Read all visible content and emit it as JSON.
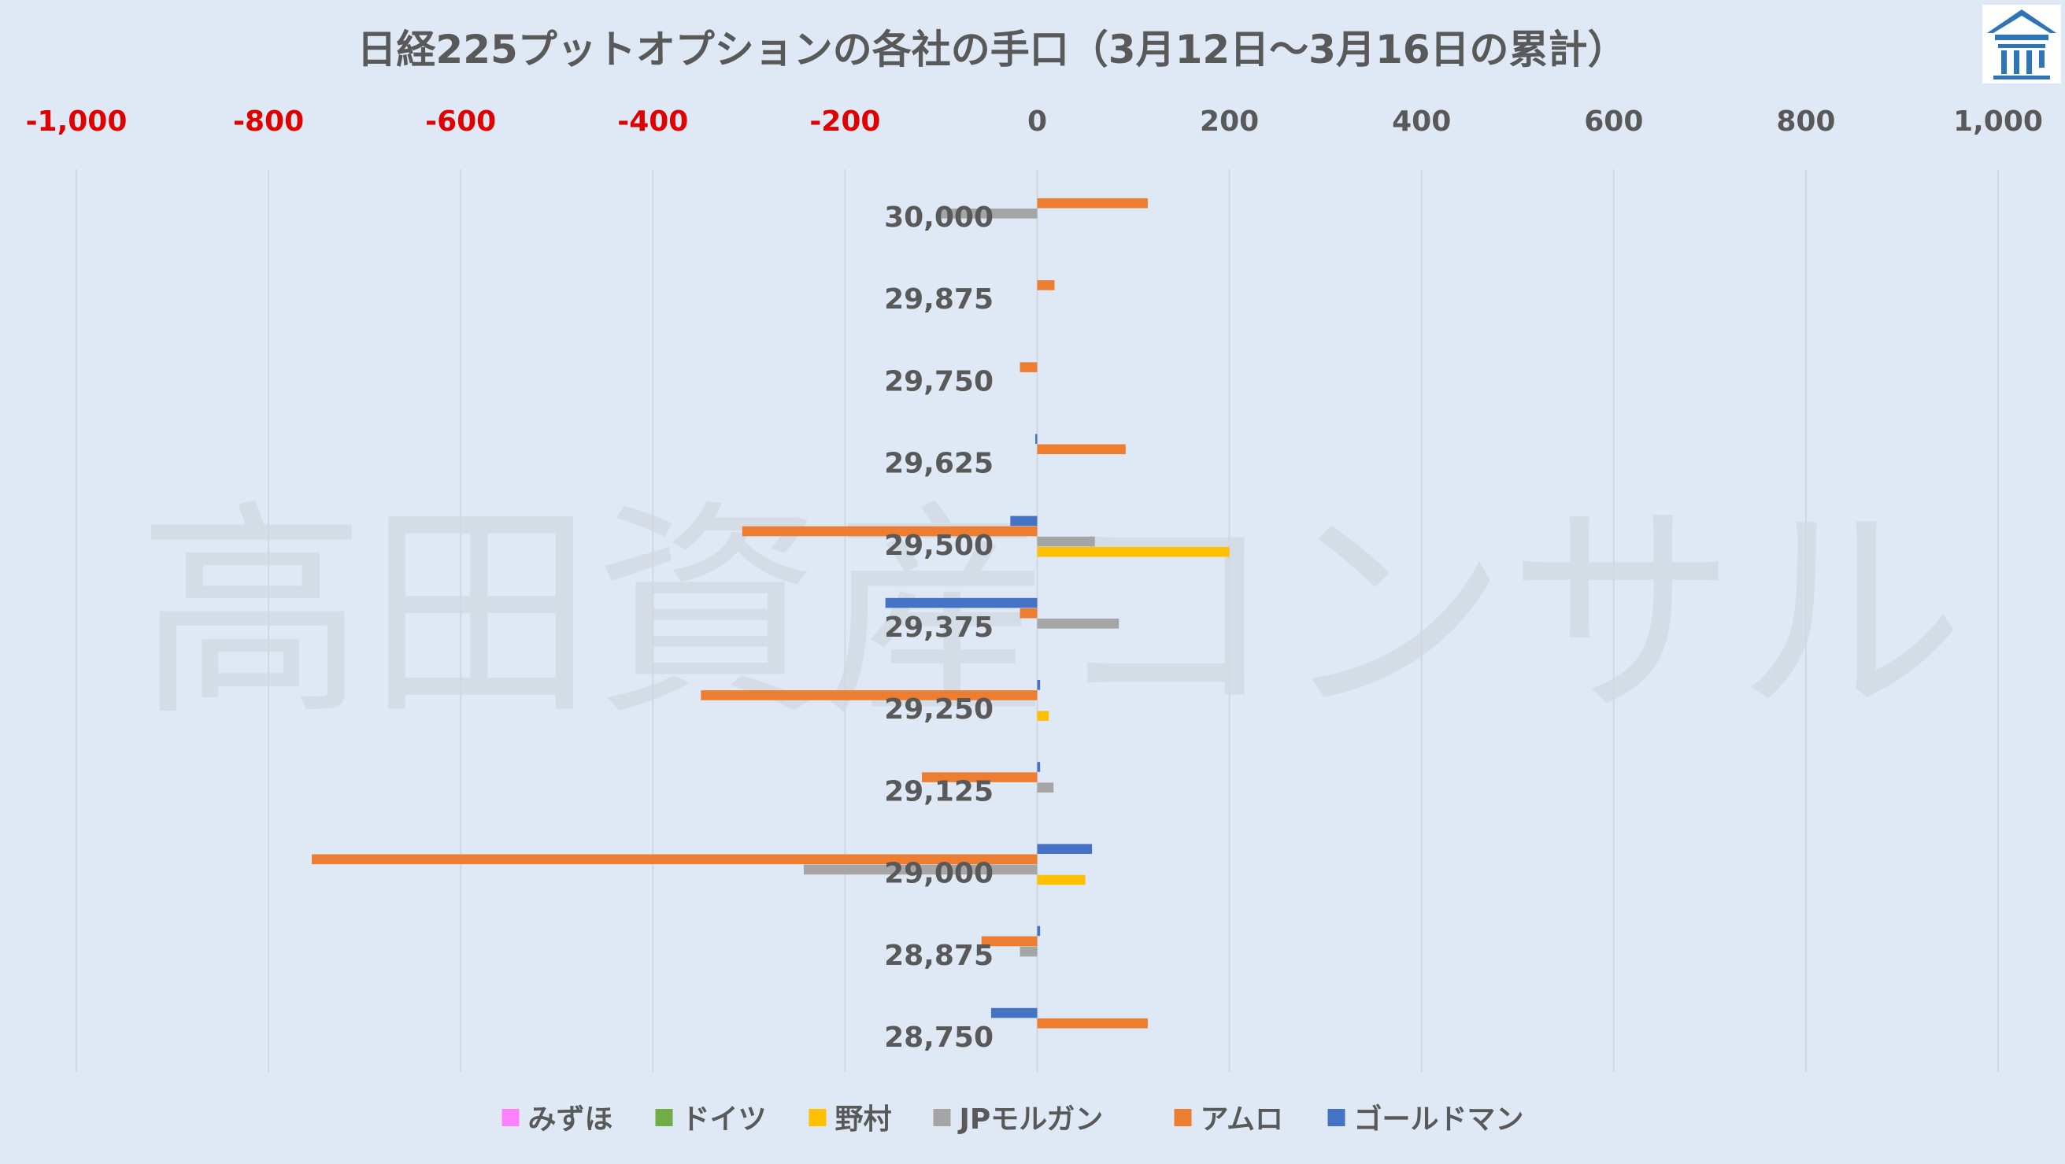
{
  "watermark": "高田資産コンサル",
  "logo": {
    "icon": "building-roof-icon",
    "color": "#2e75b6"
  },
  "colors": {
    "negative_tick": "#e00000",
    "positive_tick": "#595959",
    "grid": "#d0d7e0",
    "background": "#dfe9f5"
  },
  "chart_data": {
    "type": "bar",
    "orientation": "horizontal",
    "title": "日経225プットオプションの各社の手口（3月12日～3月16日の累計）",
    "x_axis": {
      "position": "top",
      "range": [
        -1000,
        1000
      ],
      "tick_labels": [
        "-1,000",
        "-800",
        "-600",
        "-400",
        "-200",
        "0",
        "200",
        "400",
        "600",
        "800",
        "1,000"
      ],
      "tick_values": [
        -1000,
        -800,
        -600,
        -400,
        -200,
        0,
        200,
        400,
        600,
        800,
        1000
      ],
      "grid": "vertical"
    },
    "categories": [
      "30,000",
      "29,875",
      "29,750",
      "29,625",
      "29,500",
      "29,375",
      "29,250",
      "29,125",
      "29,000",
      "28,875",
      "28,750"
    ],
    "legend_position": "bottom",
    "series": [
      {
        "name": "みずほ",
        "color": "#ff80ff",
        "values": [
          0,
          0,
          0,
          0,
          0,
          0,
          0,
          0,
          0,
          0,
          0
        ]
      },
      {
        "name": "ドイツ",
        "color": "#70ad47",
        "values": [
          0,
          0,
          0,
          0,
          0,
          0,
          0,
          0,
          0,
          0,
          0
        ]
      },
      {
        "name": "野村",
        "color": "#ffc000",
        "values": [
          0,
          0,
          0,
          0,
          200,
          0,
          12,
          0,
          50,
          0,
          0
        ]
      },
      {
        "name": "JPモルガン",
        "color": "#a5a5a5",
        "values": [
          -100,
          0,
          0,
          0,
          60,
          85,
          0,
          17,
          -243,
          -18,
          0
        ]
      },
      {
        "name": "アムロ",
        "color": "#ed7d31",
        "values": [
          115,
          18,
          -18,
          92,
          -307,
          -18,
          -350,
          -120,
          -755,
          -58,
          115
        ]
      },
      {
        "name": "ゴールドマン",
        "color": "#4472c4",
        "values": [
          0,
          0,
          0,
          -2,
          -28,
          -158,
          3,
          3,
          57,
          3,
          -48
        ]
      }
    ]
  }
}
